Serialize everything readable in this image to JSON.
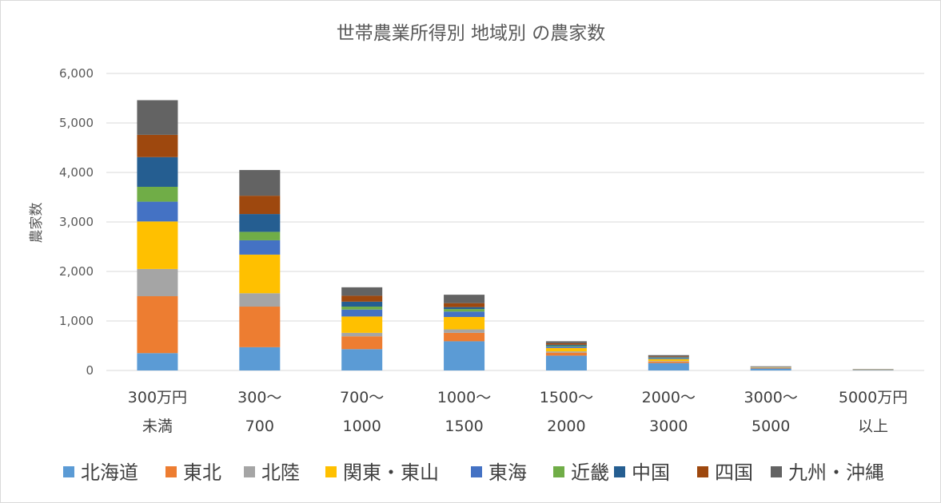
{
  "chart_data": {
    "type": "bar",
    "stacked": true,
    "title": "世帯農業所得別 地域別 の農家数",
    "ylabel": "農家数",
    "xlabel": "",
    "ylim": [
      0,
      6000
    ],
    "yticks": [
      "0",
      "1,000",
      "2,000",
      "3,000",
      "4,000",
      "5,000",
      "6,000"
    ],
    "grid": true,
    "legend_position": "bottom",
    "categories": [
      [
        "300万円",
        "未満"
      ],
      [
        "300〜",
        "700"
      ],
      [
        "700〜",
        "1000"
      ],
      [
        "1000〜",
        "1500"
      ],
      [
        "1500〜",
        "2000"
      ],
      [
        "2000〜",
        "3000"
      ],
      [
        "3000〜",
        "5000"
      ],
      [
        "5000万円",
        "以上"
      ]
    ],
    "series": [
      {
        "name": "北海道",
        "color": "#5b9bd5",
        "values": [
          350,
          470,
          430,
          590,
          300,
          150,
          40,
          10
        ]
      },
      {
        "name": "東北",
        "color": "#ed7d31",
        "values": [
          1150,
          820,
          260,
          170,
          60,
          30,
          10,
          4
        ]
      },
      {
        "name": "北陸",
        "color": "#a5a5a5",
        "values": [
          550,
          270,
          70,
          70,
          25,
          10,
          3,
          1
        ]
      },
      {
        "name": "関東・東山",
        "color": "#ffc000",
        "values": [
          960,
          780,
          330,
          250,
          70,
          40,
          8,
          4
        ]
      },
      {
        "name": "東海",
        "color": "#4472c4",
        "values": [
          400,
          290,
          140,
          110,
          30,
          20,
          5,
          2
        ]
      },
      {
        "name": "近畿",
        "color": "#70ad47",
        "values": [
          300,
          170,
          60,
          50,
          15,
          10,
          2,
          1
        ]
      },
      {
        "name": "中国",
        "color": "#255e91",
        "values": [
          600,
          360,
          100,
          40,
          20,
          10,
          3,
          1
        ]
      },
      {
        "name": "四国",
        "color": "#9e480e",
        "values": [
          450,
          370,
          120,
          80,
          30,
          15,
          5,
          2
        ]
      },
      {
        "name": "九州・沖縄",
        "color": "#636363",
        "values": [
          700,
          520,
          170,
          170,
          40,
          25,
          8,
          3
        ]
      }
    ]
  }
}
